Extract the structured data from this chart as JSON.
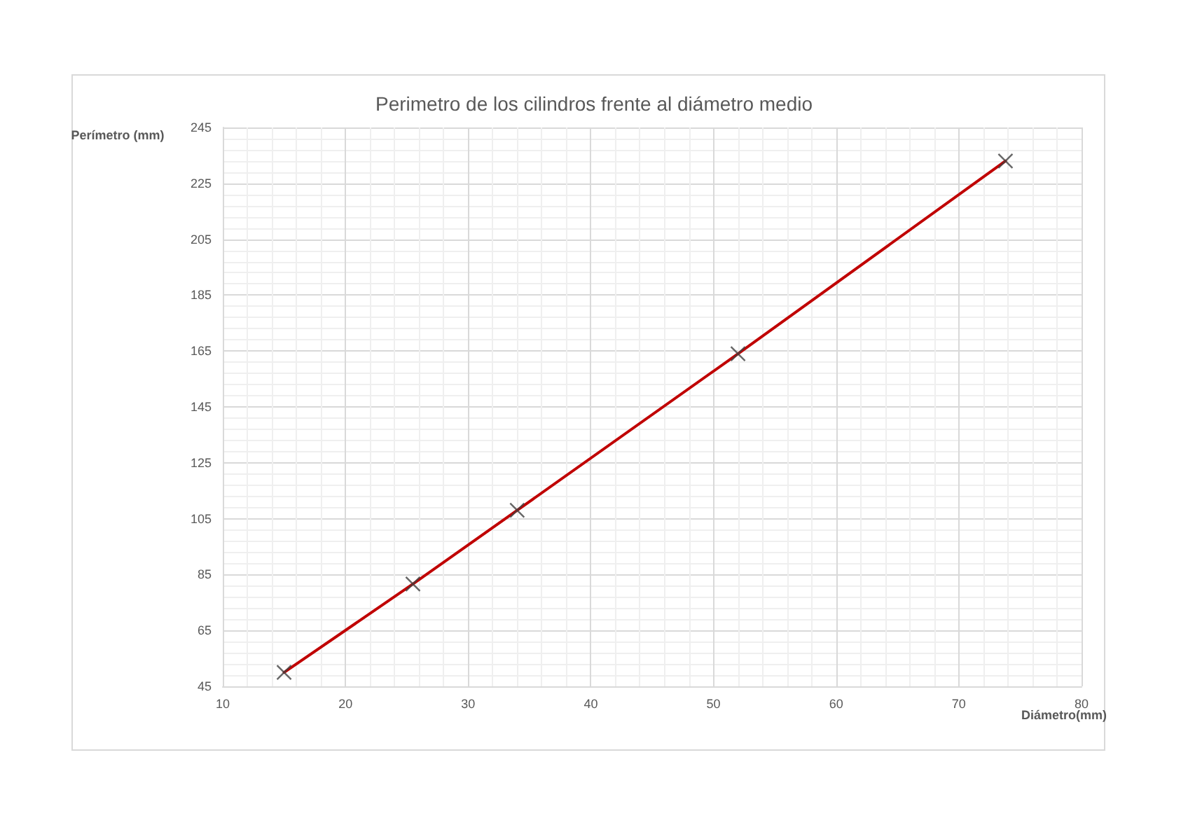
{
  "chart_data": {
    "type": "scatter",
    "title": "Perimetro de los cilindros frente al diámetro medio",
    "xlabel": "Diámetro(mm)",
    "ylabel": "Perímetro (mm)",
    "x": [
      15,
      25.5,
      34,
      52,
      73.8
    ],
    "series": [
      {
        "color": "#404040",
        "marker": "cross",
        "values": [
          50,
          81.6,
          108,
          164,
          233
        ]
      },
      {
        "type": "line",
        "color": "#c00000",
        "marker": "none",
        "line_style": "solid",
        "values": [
          50,
          81.6,
          108,
          164,
          233
        ]
      }
    ],
    "xlim": [
      10,
      80
    ],
    "xticks": [
      10,
      20,
      30,
      40,
      50,
      60,
      70,
      80
    ],
    "ylim": [
      45,
      245
    ],
    "yticks": [
      45,
      65,
      85,
      105,
      125,
      145,
      165,
      185,
      205,
      225,
      245
    ],
    "grid": true
  }
}
